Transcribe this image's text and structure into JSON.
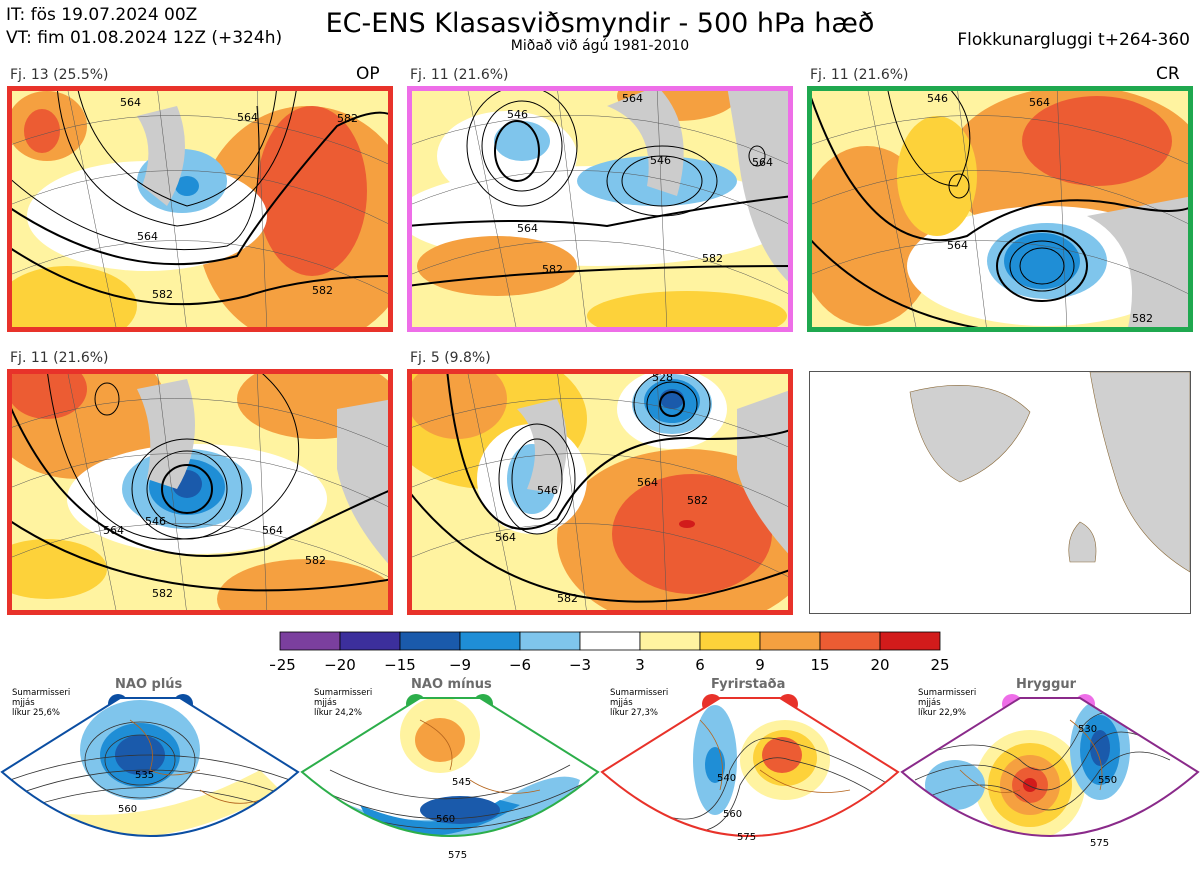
{
  "header": {
    "it_line": "IT: fös 19.07.2024 00Z",
    "vt_line": "VT: fim 01.08.2024 12Z  (+324h)",
    "title": "EC-ENS Klasasviðsmyndir - 500 hPa hæð",
    "subtitle": "Miðað við ágú 1981-2010",
    "window": "Flokkunargluggi t+264-360"
  },
  "panels": [
    {
      "label": "Fj. 13 (25.5%)",
      "tag": "OP",
      "border_color": "#e8322a",
      "contours": [
        "564",
        "564",
        "564",
        "582",
        "582",
        "582"
      ]
    },
    {
      "label": "Fj. 11 (21.6%)",
      "tag": "",
      "border_color": "#ee6ee8",
      "contours": [
        "546",
        "546",
        "564",
        "564",
        "582",
        "582",
        "564"
      ]
    },
    {
      "label": "Fj. 11 (21.6%)",
      "tag": "CR",
      "border_color": "#1fa84f",
      "contours": [
        "546",
        "564",
        "564",
        "582"
      ]
    },
    {
      "label": "Fj. 11 (21.6%)",
      "tag": "",
      "border_color": "#e8322a",
      "contours": [
        "546",
        "564",
        "564",
        "582",
        "582"
      ]
    },
    {
      "label": "Fj. 5 (9.8%)",
      "tag": "",
      "border_color": "#e8322a",
      "contours": [
        "528",
        "564",
        "546",
        "564",
        "582",
        "582"
      ]
    }
  ],
  "colorbar": {
    "ticks": [
      "−25",
      "−20",
      "−15",
      "−9",
      "−6",
      "−3",
      "3",
      "6",
      "9",
      "15",
      "20",
      "25"
    ],
    "colors": [
      "#7b3f9e",
      "#3c2f9c",
      "#1a5aab",
      "#1f8ed6",
      "#7fc5ec",
      "#ffffff",
      "#fff3a0",
      "#fdd23a",
      "#f5a040",
      "#ec5c33",
      "#d21b1b"
    ]
  },
  "regimes": [
    {
      "name": "NAO plús",
      "note": "Sumarmisseri\nmjjás\nlíkur 25,6%",
      "dot_color": "#0b4ea2",
      "frame_color": "#0b4ea2",
      "contours": [
        "535",
        "560"
      ]
    },
    {
      "name": "NAO mínus",
      "note": "Sumarmisseri\nmjjás\nlíkur 24,2%",
      "dot_color": "#2cae4a",
      "frame_color": "#2cae4a",
      "contours": [
        "545",
        "560",
        "575"
      ]
    },
    {
      "name": "Fyrirstaða",
      "note": "Sumarmisseri\nmjjás\nlíkur 27,3%",
      "dot_color": "#e8322a",
      "frame_color": "#e8322a",
      "contours": [
        "540",
        "560",
        "575"
      ]
    },
    {
      "name": "Hryggur",
      "note": "Sumarmisseri\nmjjás\nlíkur 22,9%",
      "dot_color": "#ee6ee8",
      "frame_color": "#8a2a8a",
      "contours": [
        "530",
        "550",
        "575"
      ]
    }
  ]
}
